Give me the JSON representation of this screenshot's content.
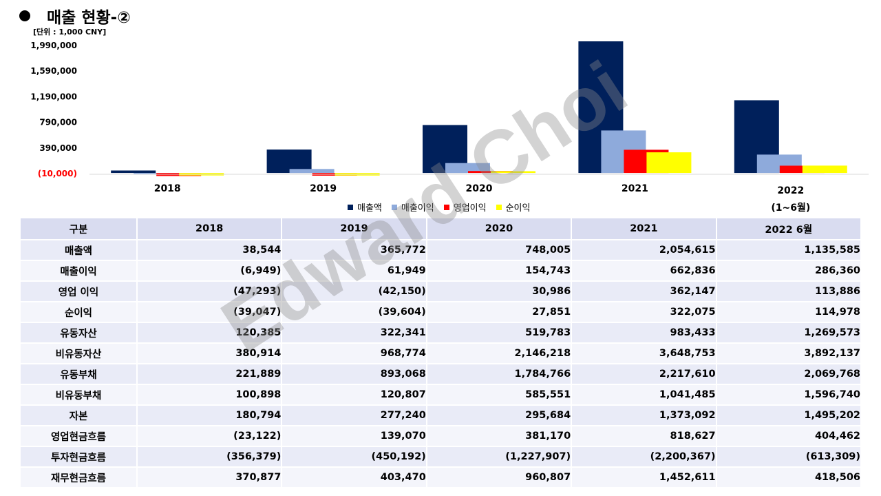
{
  "title": "매출 현황-②",
  "unit_label": "[단위 : 1,000 CNY]",
  "watermark": "Edward Choi",
  "colors": {
    "revenue": "#00205b",
    "gross_profit": "#8eaadb",
    "operating_profit": "#ff0000",
    "net_income": "#ffff00",
    "negative_tick": "#ff0000"
  },
  "chart_data": {
    "type": "bar",
    "categories": [
      "2018",
      "2019",
      "2020",
      "2021",
      "2022"
    ],
    "category_sublabels": [
      "",
      "",
      "",
      "",
      "(1~6월)"
    ],
    "series": [
      {
        "name": "매출액",
        "values": [
          38544,
          365772,
          748005,
          2054615,
          1135585
        ]
      },
      {
        "name": "매출이익",
        "values": [
          -6949,
          61949,
          154743,
          662836,
          286360
        ]
      },
      {
        "name": "영업이익",
        "values": [
          -47293,
          -42150,
          30986,
          362147,
          113886
        ]
      },
      {
        "name": "순이익",
        "values": [
          -39047,
          -39604,
          27851,
          322075,
          114978
        ]
      }
    ],
    "y_ticks": [
      -10000,
      390000,
      790000,
      1190000,
      1590000,
      1990000
    ],
    "y_tick_labels": [
      "(10,000)",
      "390,000",
      "790,000",
      "1,190,000",
      "1,590,000",
      "1,990,000"
    ],
    "ylim": [
      -10000,
      1990000
    ],
    "legend_position": "bottom",
    "grid": false
  },
  "table": {
    "headers": [
      "구분",
      "2018",
      "2019",
      "2020",
      "2021",
      "2022 6월"
    ],
    "rows": [
      {
        "label": "매출액",
        "values": [
          "38,544",
          "365,772",
          "748,005",
          "2,054,615",
          "1,135,585"
        ]
      },
      {
        "label": "매출이익",
        "values": [
          "(6,949)",
          "61,949",
          "154,743",
          "662,836",
          "286,360"
        ]
      },
      {
        "label": "영업 이익",
        "values": [
          "(47,293)",
          "(42,150)",
          "30,986",
          "362,147",
          "113,886"
        ]
      },
      {
        "label": "순이익",
        "values": [
          "(39,047)",
          "(39,604)",
          "27,851",
          "322,075",
          "114,978"
        ]
      },
      {
        "label": "유동자산",
        "values": [
          "120,385",
          "322,341",
          "519,783",
          "983,433",
          "1,269,573"
        ]
      },
      {
        "label": "비유동자산",
        "values": [
          "380,914",
          "968,774",
          "2,146,218",
          "3,648,753",
          "3,892,137"
        ]
      },
      {
        "label": "유동부채",
        "values": [
          "221,889",
          "893,068",
          "1,784,766",
          "2,217,610",
          "2,069,768"
        ]
      },
      {
        "label": "비유동부채",
        "values": [
          "100,898",
          "120,807",
          "585,551",
          "1,041,485",
          "1,596,740"
        ]
      },
      {
        "label": "자본",
        "values": [
          "180,794",
          "277,240",
          "295,684",
          "1,373,092",
          "1,495,202"
        ]
      },
      {
        "label": "영업현금흐름",
        "values": [
          "(23,122)",
          "139,070",
          "381,170",
          "818,627",
          "404,462"
        ]
      },
      {
        "label": "투자현금흐름",
        "values": [
          "(356,379)",
          "(450,192)",
          "(1,227,907)",
          "(2,200,367)",
          "(613,309)"
        ]
      },
      {
        "label": "재무현금흐름",
        "values": [
          "370,877",
          "403,470",
          "960,807",
          "1,452,611",
          "418,506"
        ]
      }
    ]
  }
}
